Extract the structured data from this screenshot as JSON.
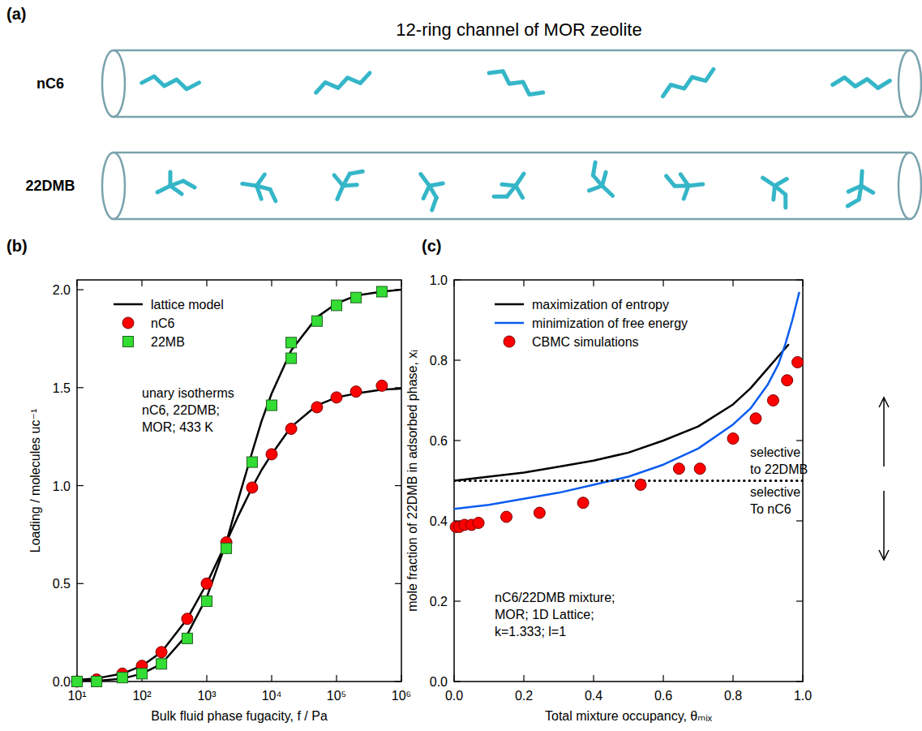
{
  "diagram": {
    "label": "(a)",
    "title": "12-ring channel of MOR zeolite",
    "color": "#35b6c8",
    "rows": [
      {
        "label": "nC6",
        "molecules": 5
      },
      {
        "label": "22DMB",
        "molecules": 9
      }
    ]
  },
  "chart_data": [
    {
      "type": "line",
      "label": "(b)",
      "x_label": "Bulk fluid phase fugacity, f / Pa",
      "y_label": "Loading / molecules uc⁻¹",
      "log": "x",
      "xlim": [
        10,
        1000000
      ],
      "xticks": [
        {
          "value": 10,
          "label": "10¹"
        },
        {
          "value": 100,
          "label": "10²"
        },
        {
          "value": 1000,
          "label": "10³"
        },
        {
          "value": 10000,
          "label": "10⁴"
        },
        {
          "value": 100000,
          "label": "10⁵"
        },
        {
          "value": 1000000,
          "label": "10⁶"
        }
      ],
      "ylim": [
        0,
        2.05
      ],
      "yticks": [
        {
          "value": 0,
          "label": "0.0"
        },
        {
          "value": 0.5,
          "label": "0.5"
        },
        {
          "value": 1,
          "label": "1.0"
        },
        {
          "value": 1.5,
          "label": "1.5"
        },
        {
          "value": 2,
          "label": "2.0"
        }
      ],
      "legend": "upper left",
      "annotations": [
        {
          "lines": [
            "unary isotherms",
            "nC6, 22DMB;",
            "MOR; 433 K"
          ]
        }
      ],
      "series": [
        {
          "name": "lattice model",
          "type": "line",
          "color": "#000000",
          "x": [
            10,
            20,
            50,
            100,
            200,
            500,
            1000,
            2000,
            3000,
            5000,
            7000,
            10000,
            20000,
            50000,
            100000,
            200000,
            500000,
            1000000,
            null,
            10,
            20,
            50,
            100,
            200,
            500,
            1000,
            2000,
            3000,
            5000,
            7000,
            10000,
            20000,
            50000,
            100000,
            200000,
            500000,
            1000000
          ],
          "values": [
            0.008,
            0.016,
            0.04,
            0.08,
            0.15,
            0.32,
            0.5,
            0.71,
            0.84,
            0.99,
            1.08,
            1.16,
            1.3,
            1.41,
            1.45,
            1.47,
            1.49,
            1.495,
            null,
            0.001,
            0.003,
            0.015,
            0.04,
            0.09,
            0.24,
            0.43,
            0.71,
            0.92,
            1.17,
            1.33,
            1.47,
            1.69,
            1.86,
            1.93,
            1.97,
            1.99,
            2.0
          ]
        },
        {
          "name": "nC6",
          "type": "scatter",
          "marker": "circle",
          "color": "#ff0000",
          "x": [
            10,
            20,
            50,
            100,
            200,
            500,
            1000,
            2000,
            5000,
            10000,
            20000,
            50000,
            100000,
            200000,
            500000
          ],
          "values": [
            0,
            0.01,
            0.04,
            0.08,
            0.15,
            0.32,
            0.5,
            0.71,
            0.99,
            1.16,
            1.29,
            1.4,
            1.45,
            1.48,
            1.51
          ]
        },
        {
          "name": "22MB",
          "type": "scatter",
          "marker": "square",
          "color": "#33dd33",
          "x": [
            10,
            20,
            50,
            100,
            200,
            500,
            1000,
            2000,
            5000,
            10000,
            20000,
            20000,
            50000,
            100000,
            200000,
            500000
          ],
          "values": [
            0,
            0,
            0.02,
            0.04,
            0.09,
            0.22,
            0.41,
            0.68,
            1.12,
            1.41,
            1.65,
            1.73,
            1.84,
            1.92,
            1.96,
            1.99
          ]
        }
      ]
    },
    {
      "type": "line",
      "label": "(c)",
      "x_label": "Total mixture occupancy, θₘᵢₓ",
      "y_label": "mole fraction of 22DMB in adsorbed phase, xᵢ",
      "xlim": [
        0,
        1
      ],
      "xticks": [
        {
          "value": 0,
          "label": "0.0"
        },
        {
          "value": 0.2,
          "label": "0.2"
        },
        {
          "value": 0.4,
          "label": "0.4"
        },
        {
          "value": 0.6,
          "label": "0.6"
        },
        {
          "value": 0.8,
          "label": "0.8"
        },
        {
          "value": 1,
          "label": "1.0"
        }
      ],
      "ylim": [
        0,
        1
      ],
      "yticks": [
        {
          "value": 0,
          "label": "0.0"
        },
        {
          "value": 0.2,
          "label": "0.2"
        },
        {
          "value": 0.4,
          "label": "0.4"
        },
        {
          "value": 0.6,
          "label": "0.6"
        },
        {
          "value": 0.8,
          "label": "0.8"
        },
        {
          "value": 1,
          "label": "1.0"
        }
      ],
      "legend": "upper left",
      "annotations": [
        {
          "lines": [
            "nC6/22DMB mixture;",
            "MOR; 1D Lattice;",
            "k=1.333; l=1"
          ]
        },
        {
          "lines": [
            "selective",
            "to 22DMB"
          ]
        },
        {
          "lines": [
            "selective",
            "To nC6"
          ]
        }
      ],
      "series": [
        {
          "name": "maximization of entropy",
          "type": "line",
          "color": "#000000",
          "x": [
            0,
            0.1,
            0.2,
            0.3,
            0.4,
            0.5,
            0.6,
            0.7,
            0.8,
            0.85,
            0.9,
            0.93,
            0.96
          ],
          "values": [
            0.5,
            0.51,
            0.52,
            0.535,
            0.55,
            0.57,
            0.6,
            0.635,
            0.69,
            0.73,
            0.78,
            0.81,
            0.84
          ]
        },
        {
          "name": "minimization of free energy",
          "type": "line",
          "color": "#0a5cf0",
          "x": [
            0,
            0.1,
            0.2,
            0.3,
            0.4,
            0.5,
            0.6,
            0.7,
            0.8,
            0.85,
            0.9,
            0.93,
            0.95,
            0.97,
            0.99
          ],
          "values": [
            0.43,
            0.44,
            0.455,
            0.47,
            0.49,
            0.51,
            0.54,
            0.58,
            0.64,
            0.68,
            0.74,
            0.79,
            0.84,
            0.9,
            0.97
          ]
        },
        {
          "name": "CBMC simulations",
          "type": "scatter",
          "marker": "circle",
          "color": "#ff0000",
          "x": [
            0.005,
            0.015,
            0.03,
            0.05,
            0.07,
            0.15,
            0.245,
            0.37,
            0.535,
            0.645,
            0.705,
            0.8,
            0.865,
            0.915,
            0.955,
            0.985
          ],
          "values": [
            0.385,
            0.385,
            0.39,
            0.39,
            0.395,
            0.41,
            0.42,
            0.445,
            0.49,
            0.53,
            0.53,
            0.605,
            0.655,
            0.7,
            0.75,
            0.795
          ]
        },
        {
          "type": "line",
          "line_style": "dotted",
          "color": "#000000",
          "x": [
            0,
            1
          ],
          "values": [
            0.5,
            0.5
          ]
        }
      ]
    }
  ]
}
